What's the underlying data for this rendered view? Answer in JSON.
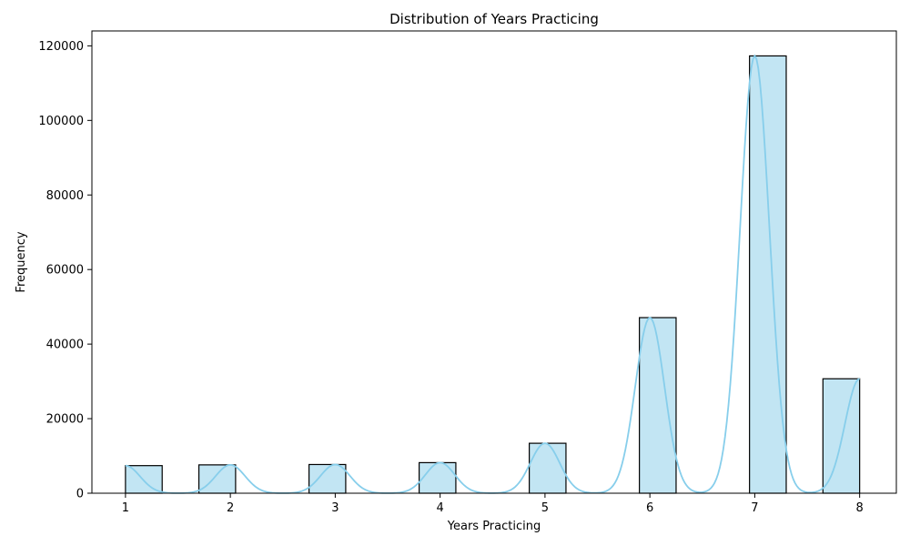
{
  "chart_data": {
    "type": "bar",
    "title": "Distribution of Years Practicing",
    "xlabel": "Years Practicing",
    "ylabel": "Frequency",
    "x_ticks": [
      1,
      2,
      3,
      4,
      5,
      6,
      7,
      8
    ],
    "y_ticks": [
      0,
      20000,
      40000,
      60000,
      80000,
      100000,
      120000
    ],
    "xlim": [
      0.68,
      8.35
    ],
    "ylim": [
      0,
      124000
    ],
    "bins": [
      {
        "x_start": 1.0,
        "x_end": 1.35,
        "value": 7400
      },
      {
        "x_start": 1.7,
        "x_end": 2.05,
        "value": 7600
      },
      {
        "x_start": 2.75,
        "x_end": 3.1,
        "value": 7700
      },
      {
        "x_start": 3.8,
        "x_end": 4.15,
        "value": 8200
      },
      {
        "x_start": 4.85,
        "x_end": 5.2,
        "value": 13400
      },
      {
        "x_start": 5.9,
        "x_end": 6.25,
        "value": 47100
      },
      {
        "x_start": 6.95,
        "x_end": 7.3,
        "value": 117300
      },
      {
        "x_start": 7.65,
        "x_end": 8.0,
        "value": 30700
      }
    ],
    "kde_peaks": [
      {
        "x": 1,
        "value": 7400
      },
      {
        "x": 2,
        "value": 7600
      },
      {
        "x": 3,
        "value": 7700
      },
      {
        "x": 4,
        "value": 8200
      },
      {
        "x": 5,
        "value": 13400
      },
      {
        "x": 6,
        "value": 47100
      },
      {
        "x": 7,
        "value": 117300
      },
      {
        "x": 8,
        "value": 30700
      }
    ],
    "bar_color": "#c2e5f3",
    "kde_color": "#87ceeb",
    "grid": false
  }
}
